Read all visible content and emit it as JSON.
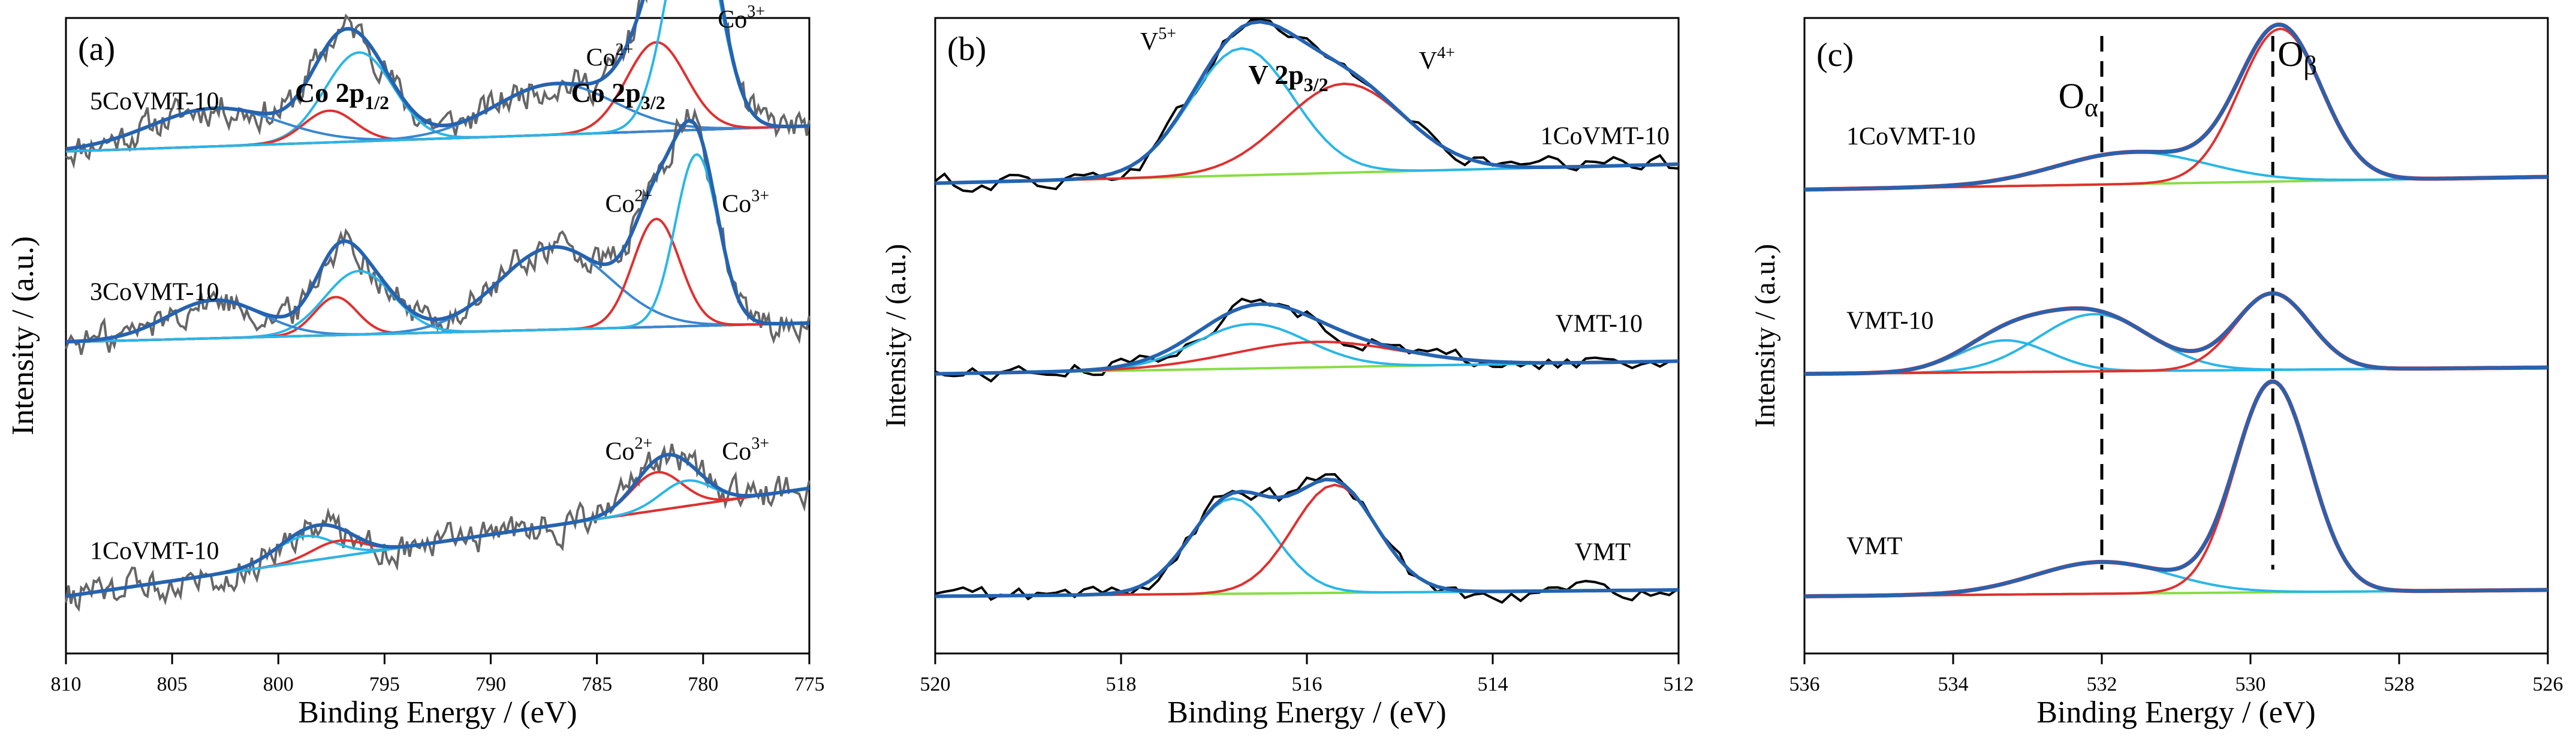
{
  "colors": {
    "raw_a": "#666666",
    "raw_bc": "#000000",
    "envelope": "#2563b0",
    "cyan": "#29b6e8",
    "red": "#e03030",
    "green": "#88dd44",
    "mid_blue": "#3a86d0"
  },
  "chart_data": [
    {
      "type": "line",
      "panel_label": "(a)",
      "xlabel": "Binding Energy / (eV)",
      "ylabel": "Intensity / (a.u.)",
      "xlim": [
        810,
        775
      ],
      "x_ticks": [
        "810",
        "805",
        "800",
        "795",
        "790",
        "785",
        "780",
        "775"
      ],
      "peak_headers": [
        {
          "text": "Co 2p",
          "sub": "1/2",
          "x": 797
        },
        {
          "text": "Co 2p",
          "sub": "3/2",
          "x": 784
        }
      ],
      "series": [
        {
          "name": "5CoVMT-10",
          "baseline": 0.79,
          "slope": 0.04,
          "components": [
            {
              "label": "Co3+ 2p1/2",
              "color": "cyan",
              "center": 796.2,
              "sigma": 1.6,
              "amp": 0.14
            },
            {
              "label": "Co2+ 2p1/2",
              "color": "red",
              "center": 797.6,
              "sigma": 1.2,
              "amp": 0.05
            },
            {
              "label": "sat 1",
              "color": "mid_blue",
              "center": 803.0,
              "sigma": 3.0,
              "amp": 0.06
            },
            {
              "label": "sat 2",
              "color": "mid_blue",
              "center": 787.0,
              "sigma": 2.8,
              "amp": 0.08
            },
            {
              "label": "Co2+",
              "color": "red",
              "center": 782.2,
              "sigma": 1.4,
              "amp": 0.14
            },
            {
              "label": "Co3+",
              "color": "cyan",
              "center": 780.5,
              "sigma": 1.2,
              "amp": 0.36
            }
          ],
          "annotations": [
            {
              "text": "Co",
              "sup": "2+",
              "x": 784.4,
              "y": 0.925
            },
            {
              "text": "Co",
              "sup": "3+",
              "x": 778.2,
              "y": 0.985
            }
          ]
        },
        {
          "name": "3CoVMT-10",
          "baseline": 0.49,
          "slope": 0.03,
          "components": [
            {
              "label": "Co3+ 2p1/2",
              "color": "cyan",
              "center": 796.2,
              "sigma": 1.6,
              "amp": 0.1
            },
            {
              "label": "Co2+ 2p1/2",
              "color": "red",
              "center": 797.3,
              "sigma": 1.0,
              "amp": 0.06
            },
            {
              "label": "sat 1",
              "color": "mid_blue",
              "center": 803.0,
              "sigma": 2.2,
              "amp": 0.06
            },
            {
              "label": "sat 2",
              "color": "mid_blue",
              "center": 787.0,
              "sigma": 2.6,
              "amp": 0.13
            },
            {
              "label": "Co2+",
              "color": "red",
              "center": 782.2,
              "sigma": 1.1,
              "amp": 0.17
            },
            {
              "label": "Co3+",
              "color": "cyan",
              "center": 780.3,
              "sigma": 1.0,
              "amp": 0.27
            }
          ],
          "annotations": [
            {
              "text": "Co",
              "sup": "2+",
              "x": 783.5,
              "y": 0.695
            },
            {
              "text": "Co",
              "sup": "3+",
              "x": 778.0,
              "y": 0.695
            }
          ]
        },
        {
          "name": "1CoVMT-10",
          "baseline": 0.09,
          "slope": 0.17,
          "components": [
            {
              "label": "Co3+ 2p1/2",
              "color": "cyan",
              "center": 798.8,
              "sigma": 1.4,
              "amp": 0.04
            },
            {
              "label": "Co2+ 2p1/2",
              "color": "red",
              "center": 797.2,
              "sigma": 1.2,
              "amp": 0.025
            },
            {
              "label": "Co2+",
              "color": "red",
              "center": 782.2,
              "sigma": 1.2,
              "amp": 0.06
            },
            {
              "label": "Co3+",
              "color": "cyan",
              "center": 780.8,
              "sigma": 1.2,
              "amp": 0.04
            }
          ],
          "annotations": [
            {
              "text": "Co",
              "sup": "2+",
              "x": 783.5,
              "y": 0.305
            },
            {
              "text": "Co",
              "sup": "3+",
              "x": 778.0,
              "y": 0.305
            }
          ]
        }
      ]
    },
    {
      "type": "line",
      "panel_label": "(b)",
      "xlabel": "Binding Energy / (eV)",
      "ylabel": "Intensity / (a.u.)",
      "xlim": [
        520,
        512
      ],
      "x_ticks": [
        "520",
        "518",
        "516",
        "514",
        "512"
      ],
      "peak_headers": [
        {
          "text": "V 2p",
          "sub": "3/2",
          "x": 516.2
        }
      ],
      "series": [
        {
          "name": "1CoVMT-10",
          "baseline": 0.74,
          "slope": 0.03,
          "components": [
            {
              "label": "V5+",
              "color": "cyan",
              "center": 516.7,
              "sigma": 0.55,
              "amp": 0.2
            },
            {
              "label": "V4+",
              "color": "red",
              "center": 515.6,
              "sigma": 0.65,
              "amp": 0.14
            }
          ],
          "annotations": [
            {
              "text": "V",
              "sup": "5+",
              "x": 517.6,
              "y": 0.95
            },
            {
              "text": "V",
              "sup": "4+",
              "x": 514.6,
              "y": 0.92
            }
          ]
        },
        {
          "name": "VMT-10",
          "baseline": 0.44,
          "slope": 0.02,
          "components": [
            {
              "label": "V5+",
              "color": "cyan",
              "center": 516.6,
              "sigma": 0.6,
              "amp": 0.07
            },
            {
              "label": "V4+",
              "color": "red",
              "center": 515.9,
              "sigma": 0.9,
              "amp": 0.04
            }
          ],
          "annotations": []
        },
        {
          "name": "VMT",
          "baseline": 0.09,
          "slope": 0.01,
          "components": [
            {
              "label": "V5+",
              "color": "cyan",
              "center": 516.8,
              "sigma": 0.45,
              "amp": 0.15
            },
            {
              "label": "V4+",
              "color": "red",
              "center": 515.7,
              "sigma": 0.45,
              "amp": 0.17
            }
          ],
          "annotations": []
        }
      ]
    },
    {
      "type": "line",
      "panel_label": "(c)",
      "xlabel": "Binding Energy / (eV)",
      "ylabel": "Intensity / (a.u.)",
      "xlim": [
        536,
        526
      ],
      "x_ticks": [
        "536",
        "534",
        "532",
        "530",
        "528",
        "526"
      ],
      "reference_lines": [
        {
          "label": "O",
          "sub": "α",
          "x": 532.0
        },
        {
          "label": "O",
          "sub": "β",
          "x": 529.7
        }
      ],
      "series": [
        {
          "name": "1CoVMT-10",
          "baseline": 0.73,
          "slope": 0.02,
          "components": [
            {
              "label": "Oα",
              "color": "cyan",
              "center": 531.6,
              "sigma": 1.0,
              "amp": 0.05
            },
            {
              "label": "Oβ",
              "color": "red",
              "center": 529.6,
              "sigma": 0.55,
              "amp": 0.24
            }
          ],
          "annotations": []
        },
        {
          "name": "VMT-10",
          "baseline": 0.44,
          "slope": 0.01,
          "components": [
            {
              "label": "Oads",
              "color": "cyan",
              "center": 533.3,
              "sigma": 0.6,
              "amp": 0.05
            },
            {
              "label": "Oα",
              "color": "cyan",
              "center": 532.1,
              "sigma": 0.75,
              "amp": 0.09
            },
            {
              "label": "Oβ",
              "color": "red",
              "center": 529.7,
              "sigma": 0.5,
              "amp": 0.12
            }
          ],
          "annotations": []
        },
        {
          "name": "VMT",
          "baseline": 0.09,
          "slope": 0.01,
          "components": [
            {
              "label": "Oα",
              "color": "cyan",
              "center": 532.0,
              "sigma": 0.9,
              "amp": 0.05
            },
            {
              "label": "Oβ",
              "color": "red",
              "center": 529.7,
              "sigma": 0.5,
              "amp": 0.33
            }
          ],
          "annotations": []
        }
      ]
    }
  ]
}
